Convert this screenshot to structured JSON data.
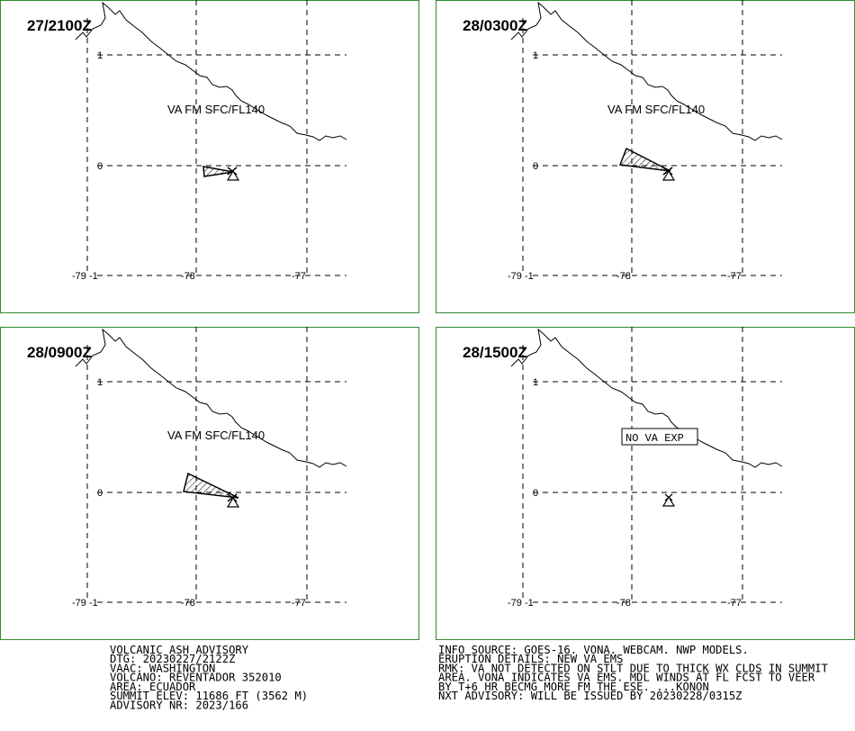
{
  "panels": [
    {
      "time": "27/2100Z",
      "va_label": "VA FM SFC/FL140",
      "cloud": "small"
    },
    {
      "time": "28/0300Z",
      "va_label": "VA FM SFC/FL140",
      "cloud": "medium"
    },
    {
      "time": "28/0900Z",
      "va_label": "VA FM SFC/FL140",
      "cloud": "large"
    },
    {
      "time": "28/1500Z",
      "no_va_label": "NO VA EXP",
      "cloud": "none"
    }
  ],
  "axes": {
    "lat_labels": [
      "1",
      "0",
      "-1"
    ],
    "lon_labels": [
      "-79",
      "-78",
      "-77"
    ]
  },
  "advisory": {
    "left_lines": [
      "VOLCANIC ASH ADVISORY",
      "DTG: 20230227/2122Z",
      "VAAC: WASHINGTON",
      "VOLCANO: REVENTADOR 352010",
      "AREA: ECUADOR",
      "SUMMIT ELEV: 11686 FT (3562 M)",
      "ADVISORY NR: 2023/166"
    ],
    "right_lines": [
      "INFO SOURCE: GOES-16. VONA. WEBCAM. NWP MODELS.",
      "ERUPTION DETAILS: NEW VA EMS",
      "RMK: VA NOT DETECTED ON STLT DUE TO THICK WX CLDS IN SUMMIT",
      "AREA. VONA INDICATES VA EMS. MDL WINDS AT FL FCST TO VEER",
      "BY T+6 HR BECMG MORE FM THE ESE. ...KONON",
      "NXT ADVISORY: WILL BE ISSUED BY 20230228/0315Z"
    ]
  },
  "colors": {
    "panel_border": "#2e8b2e",
    "lines": "#000000"
  },
  "icons": {
    "volcano": "volcano-triangle-icon"
  }
}
